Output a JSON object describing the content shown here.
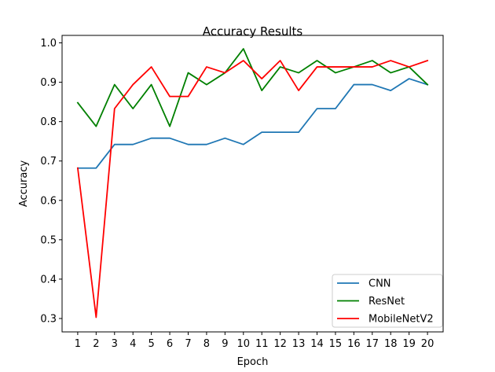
{
  "chart_data": {
    "type": "line",
    "title": "Accuracy Results",
    "xlabel": "Epoch",
    "ylabel": "Accuracy",
    "x": [
      1,
      2,
      3,
      4,
      5,
      6,
      7,
      8,
      9,
      10,
      11,
      12,
      13,
      14,
      15,
      16,
      17,
      18,
      19,
      20
    ],
    "xticks": [
      "1",
      "2",
      "3",
      "4",
      "5",
      "6",
      "7",
      "8",
      "9",
      "10",
      "11",
      "12",
      "13",
      "14",
      "15",
      "16",
      "17",
      "18",
      "19",
      "20"
    ],
    "yticks": [
      "0.3",
      "0.4",
      "0.5",
      "0.6",
      "0.7",
      "0.8",
      "0.9",
      "1.0"
    ],
    "yticks_values": [
      0.3,
      0.4,
      0.5,
      0.6,
      0.7,
      0.8,
      0.9,
      1.0
    ],
    "xlim": [
      0.15,
      20.85
    ],
    "ylim": [
      0.266,
      1.019
    ],
    "grid": false,
    "legend_position": "lower-right",
    "series": [
      {
        "name": "CNN",
        "color": "#1f77b4",
        "values": [
          0.682,
          0.682,
          0.742,
          0.742,
          0.758,
          0.758,
          0.742,
          0.742,
          0.758,
          0.742,
          0.773,
          0.773,
          0.773,
          0.833,
          0.833,
          0.894,
          0.894,
          0.879,
          0.909,
          0.894
        ]
      },
      {
        "name": "ResNet",
        "color": "#008000",
        "values": [
          0.848,
          0.788,
          0.894,
          0.833,
          0.894,
          0.788,
          0.924,
          0.894,
          0.924,
          0.985,
          0.879,
          0.939,
          0.924,
          0.955,
          0.924,
          0.939,
          0.955,
          0.924,
          0.939,
          0.894
        ]
      },
      {
        "name": "MobileNetV2",
        "color": "#ff0000",
        "values": [
          0.682,
          0.303,
          0.833,
          0.894,
          0.939,
          0.864,
          0.864,
          0.939,
          0.924,
          0.955,
          0.909,
          0.955,
          0.879,
          0.939,
          0.939,
          0.939,
          0.939,
          0.955,
          0.939,
          0.955
        ]
      }
    ]
  }
}
